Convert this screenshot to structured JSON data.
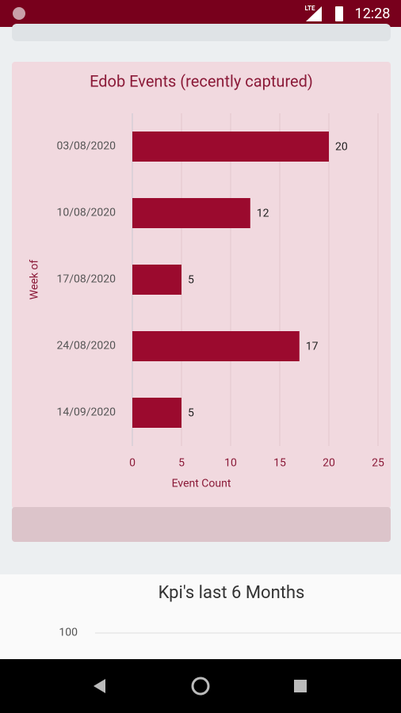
{
  "status_bar": {
    "network": "LTE",
    "time": "12:28"
  },
  "chart_data": [
    {
      "type": "hbar",
      "title": "Edob Events (recently captured)",
      "categories": [
        "03/08/2020",
        "10/08/2020",
        "17/08/2020",
        "24/08/2020",
        "14/09/2020"
      ],
      "values": [
        20,
        12,
        5,
        17,
        5
      ],
      "color": "#9b0a2e",
      "xlim": [
        0,
        25
      ],
      "xticks": [
        0,
        5,
        10,
        15,
        20,
        25
      ],
      "grid": true,
      "xlabel": "Event Count",
      "ylabel": "Week of"
    },
    {
      "type": "line",
      "title": "Kpi's last 6 Months",
      "yticks": [
        100
      ]
    }
  ]
}
